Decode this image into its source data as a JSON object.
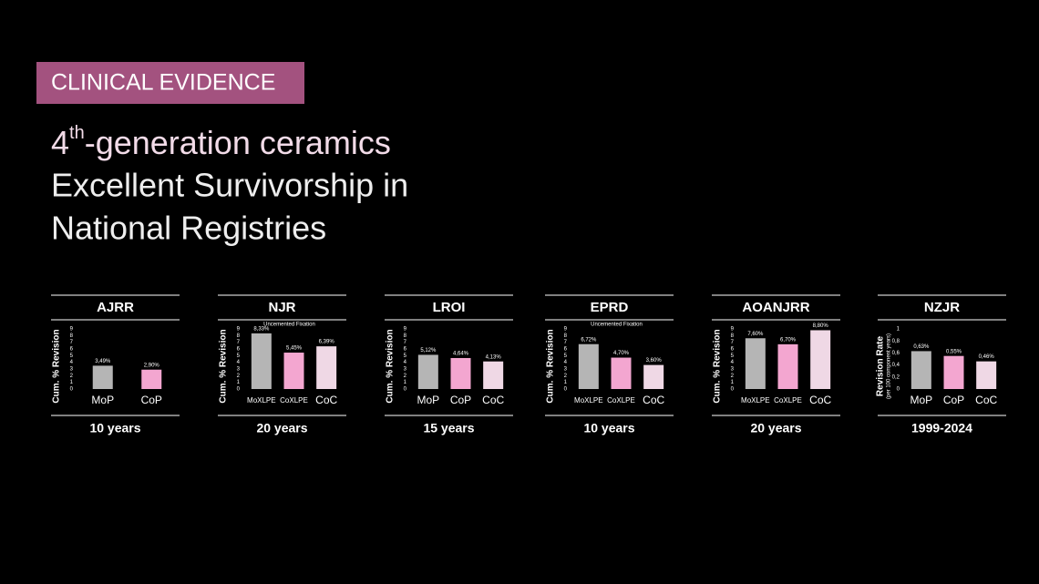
{
  "header": {
    "tag": "CLINICAL EVIDENCE",
    "title_line_1": {
      "number": "4",
      "superscript": "th",
      "rest": "-generation ceramics"
    },
    "title_line_2": "Excellent Survivorship in",
    "title_line_3": "National Registries"
  },
  "chart_data": [
    {
      "type": "bar",
      "title": "AJRR",
      "ylabel": "Cum. % Revision",
      "categories": [
        "MoP",
        "CoP"
      ],
      "values": [
        3.49,
        2.9
      ],
      "value_labels": [
        "3,49%",
        "2,90%"
      ],
      "colors": [
        "#b5b5b5",
        "#f3a6d0"
      ],
      "ylim": [
        0,
        9
      ],
      "yticks": [
        0,
        1,
        2,
        3,
        4,
        5,
        6,
        7,
        8,
        9
      ],
      "footer": "10 years"
    },
    {
      "type": "bar",
      "title": "NJR",
      "subtitle": "Uncemented Fixation",
      "ylabel": "Cum. % Revision",
      "categories": [
        "MoXLPE",
        "CoXLPE",
        "CoC"
      ],
      "values": [
        8.33,
        5.45,
        6.39
      ],
      "value_labels": [
        "8,33%",
        "5,45%",
        "6,39%"
      ],
      "colors": [
        "#b5b5b5",
        "#f3a6d0",
        "#efd8e5"
      ],
      "ylim": [
        0,
        9
      ],
      "yticks": [
        0,
        1,
        2,
        3,
        4,
        5,
        6,
        7,
        8,
        9
      ],
      "footer": "20 years"
    },
    {
      "type": "bar",
      "title": "LROI",
      "ylabel": "Cum. % Revision",
      "categories": [
        "MoP",
        "CoP",
        "CoC"
      ],
      "values": [
        5.12,
        4.64,
        4.13
      ],
      "value_labels": [
        "5,12%",
        "4,64%",
        "4,13%"
      ],
      "colors": [
        "#b5b5b5",
        "#f3a6d0",
        "#efd8e5"
      ],
      "ylim": [
        0,
        9
      ],
      "yticks": [
        0,
        1,
        2,
        3,
        4,
        5,
        6,
        7,
        8,
        9
      ],
      "footer": "15 years"
    },
    {
      "type": "bar",
      "title": "EPRD",
      "subtitle": "Uncemented Fixation",
      "ylabel": "Cum. % Revision",
      "categories": [
        "MoXLPE",
        "CoXLPE",
        "CoC"
      ],
      "values": [
        6.72,
        4.7,
        3.6
      ],
      "value_labels": [
        "6,72%",
        "4,70%",
        "3,60%"
      ],
      "colors": [
        "#b5b5b5",
        "#f3a6d0",
        "#efd8e5"
      ],
      "ylim": [
        0,
        9
      ],
      "yticks": [
        0,
        1,
        2,
        3,
        4,
        5,
        6,
        7,
        8,
        9
      ],
      "footer": "10 years"
    },
    {
      "type": "bar",
      "title": "AOANJRR",
      "ylabel": "Cum. % Revision",
      "categories": [
        "MoXLPE",
        "CoXLPE",
        "CoC"
      ],
      "values": [
        7.6,
        6.7,
        8.8
      ],
      "value_labels": [
        "7,60%",
        "6,70%",
        "8,80%"
      ],
      "colors": [
        "#b5b5b5",
        "#f3a6d0",
        "#efd8e5"
      ],
      "ylim": [
        0,
        9
      ],
      "yticks": [
        0,
        1,
        2,
        3,
        4,
        5,
        6,
        7,
        8,
        9
      ],
      "footer": "20 years"
    },
    {
      "type": "bar",
      "title": "NZJR",
      "ylabel": "Revision Rate",
      "ylabel_note": "(per 100 component years)",
      "categories": [
        "MoP",
        "CoP",
        "CoC"
      ],
      "values": [
        0.63,
        0.55,
        0.46
      ],
      "value_labels": [
        "0,63%",
        "0,55%",
        "0,46%"
      ],
      "colors": [
        "#b5b5b5",
        "#f3a6d0",
        "#efd8e5"
      ],
      "ylim": [
        0,
        1
      ],
      "yticks": [
        0,
        {
          "value": 0.2,
          "label": "0,2"
        },
        {
          "value": 0.4,
          "label": "0,4"
        },
        {
          "value": 0.6,
          "label": "0,6"
        },
        {
          "value": 0.8,
          "label": "0,8"
        },
        1
      ],
      "footer": "1999-2024"
    }
  ]
}
